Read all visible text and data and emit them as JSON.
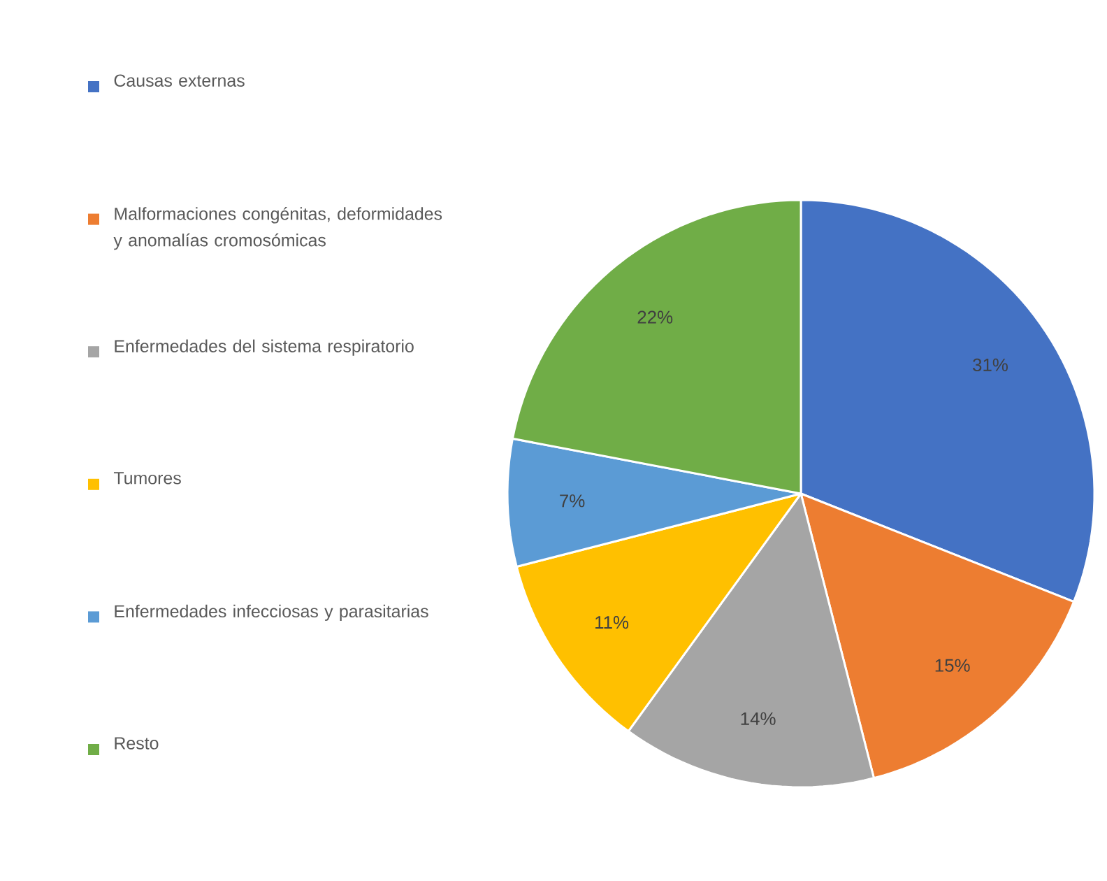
{
  "chart_data": {
    "type": "pie",
    "categories": [
      "Causas externas",
      "Malformaciones congénitas, deformidades y anomalías cromosómicas",
      "Enfermedades del sistema respiratorio",
      "Tumores",
      "Enfermedades infecciosas y parasitarias",
      "Resto"
    ],
    "values": [
      31,
      15,
      14,
      11,
      7,
      22
    ],
    "value_labels": [
      "31%",
      "15%",
      "14%",
      "11%",
      "7%",
      "22%"
    ],
    "colors": [
      "#4472c4",
      "#ed7d31",
      "#a5a5a5",
      "#ffc000",
      "#5b9bd5",
      "#70ad47"
    ],
    "legend": "left"
  }
}
